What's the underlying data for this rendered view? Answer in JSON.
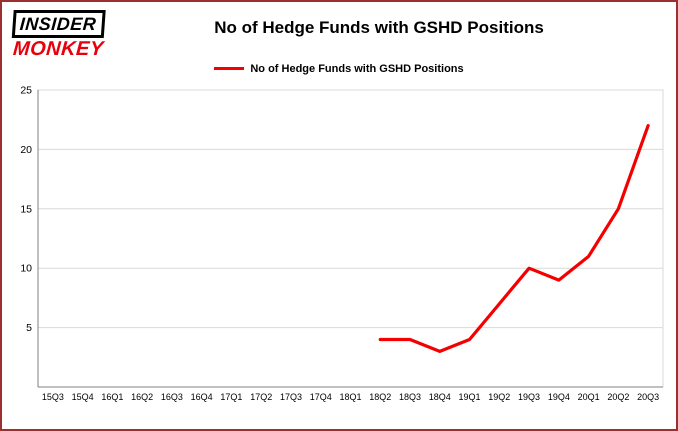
{
  "logo": {
    "line1": "INSIDER",
    "line2": "MONKEY"
  },
  "title": "No of Hedge Funds with GSHD Positions",
  "legend": {
    "label": "No of Hedge Funds with GSHD Positions",
    "color": "#f40000"
  },
  "colors": {
    "line": "#f40000",
    "grid": "#d9d9d9",
    "axis": "#808080",
    "plot_border": "#d9d9d9",
    "text": "#000000",
    "frame_border": "#9c2f2f"
  },
  "chart_data": {
    "type": "line",
    "title": "No of Hedge Funds with GSHD Positions",
    "categories": [
      "15Q3",
      "15Q4",
      "16Q1",
      "16Q2",
      "16Q3",
      "16Q4",
      "17Q1",
      "17Q2",
      "17Q3",
      "17Q4",
      "18Q1",
      "18Q2",
      "18Q3",
      "18Q4",
      "19Q1",
      "19Q2",
      "19Q3",
      "19Q4",
      "20Q1",
      "20Q2",
      "20Q3"
    ],
    "series": [
      {
        "name": "No of Hedge Funds with GSHD Positions",
        "color": "#f40000",
        "values": [
          null,
          null,
          null,
          null,
          null,
          null,
          null,
          null,
          null,
          null,
          null,
          4,
          4,
          3,
          4,
          7,
          10,
          9,
          11,
          15,
          22
        ]
      }
    ],
    "xlabel": "",
    "ylabel": "",
    "ylim": [
      0,
      25
    ],
    "yticks": [
      5,
      10,
      15,
      20,
      25
    ],
    "grid": true,
    "legend_position": "top"
  }
}
